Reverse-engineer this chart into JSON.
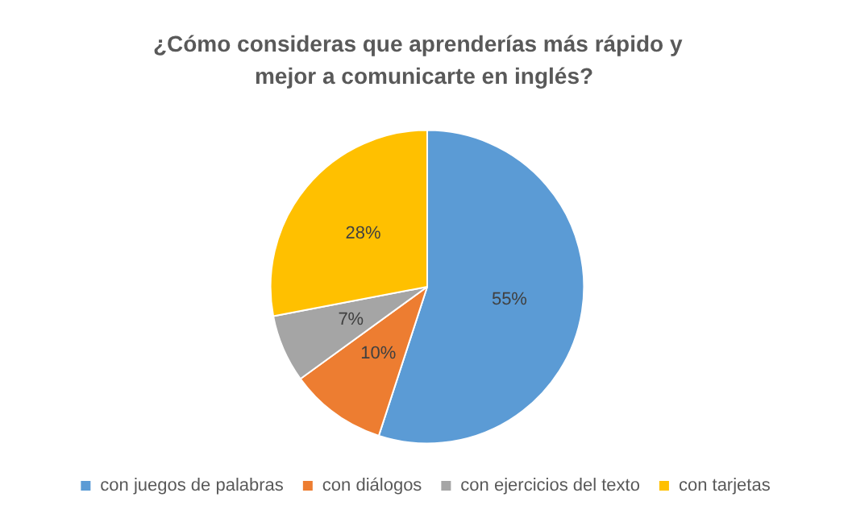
{
  "chart_data": {
    "type": "pie",
    "title": "¿Cómo consideras que aprenderías más rápido y  mejor a comunicarte en inglés?",
    "categories": [
      "con juegos de palabras",
      "con diálogos",
      "con ejercicios del texto",
      "con tarjetas"
    ],
    "values": [
      55,
      10,
      7,
      28
    ],
    "colors": [
      "#5b9bd5",
      "#ed7d31",
      "#a5a5a5",
      "#ffc000"
    ],
    "value_labels": [
      "55%",
      "10%",
      "7%",
      "28%"
    ],
    "legend": "bottom"
  }
}
